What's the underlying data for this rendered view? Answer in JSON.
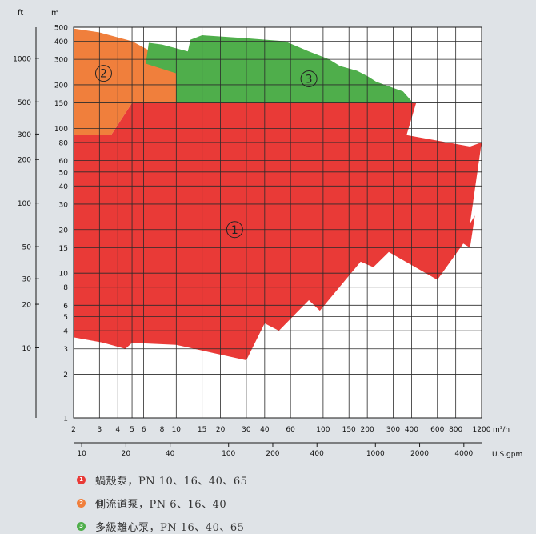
{
  "chart_data": {
    "type": "area",
    "x_axis": {
      "label": "m³/h",
      "scale": "log",
      "range": [
        2,
        1200
      ],
      "ticks": [
        "2",
        "3",
        "4",
        "5",
        "6",
        "8",
        "10",
        "15",
        "20",
        "30",
        "40",
        "60",
        "100",
        "150",
        "200",
        "300",
        "400",
        "600",
        "800",
        "1200"
      ],
      "secondary_label": "U.S.gpm",
      "secondary_ticks": [
        "10",
        "20",
        "40",
        "100",
        "200",
        "400",
        "1000",
        "2000",
        "4000"
      ]
    },
    "y_axis": {
      "label": "m",
      "scale": "log",
      "range": [
        1,
        500
      ],
      "ticks": [
        "1",
        "2",
        "3",
        "4",
        "5",
        "6",
        "8",
        "10",
        "15",
        "20",
        "30",
        "40",
        "50",
        "60",
        "80",
        "100",
        "150",
        "200",
        "300",
        "400",
        "500"
      ],
      "secondary_label": "ft",
      "secondary_ticks": [
        "10",
        "20",
        "30",
        "50",
        "100",
        "200",
        "300",
        "500",
        "1000"
      ]
    },
    "grid": true,
    "series": [
      {
        "region_label": "1",
        "color": "#e93a37",
        "polygon": [
          [
            2,
            3.6
          ],
          [
            3.2,
            3.3
          ],
          [
            4.5,
            3.0
          ],
          [
            5,
            3.3
          ],
          [
            10,
            3.2
          ],
          [
            18,
            2.8
          ],
          [
            30,
            2.5
          ],
          [
            40,
            4.5
          ],
          [
            50,
            4.0
          ],
          [
            80,
            6.5
          ],
          [
            95,
            5.5
          ],
          [
            180,
            12.0
          ],
          [
            220,
            11.0
          ],
          [
            280,
            14.0
          ],
          [
            600,
            9.0
          ],
          [
            900,
            16.0
          ],
          [
            1000,
            15.0
          ],
          [
            1080,
            25.0
          ],
          [
            1000,
            22.0
          ],
          [
            1200,
            80.0
          ],
          [
            1000,
            75.0
          ],
          [
            370,
            90.0
          ],
          [
            430,
            150.0
          ],
          [
            5.0,
            150.0
          ],
          [
            3.6,
            90.0
          ],
          [
            2,
            90.0
          ]
        ]
      },
      {
        "region_label": "2",
        "color": "#f07f3c",
        "polygon": [
          [
            2,
            90.0
          ],
          [
            3.6,
            90.0
          ],
          [
            5.0,
            150.0
          ],
          [
            10,
            150.0
          ],
          [
            10,
            240.0
          ],
          [
            7.5,
            320.0
          ],
          [
            5,
            400.0
          ],
          [
            3,
            460.0
          ],
          [
            2,
            490.0
          ]
        ]
      },
      {
        "region_label": "3",
        "color": "#4fae4b",
        "polygon": [
          [
            10,
            150.0
          ],
          [
            410,
            150.0
          ],
          [
            350,
            180.0
          ],
          [
            230,
            210.0
          ],
          [
            200,
            230.0
          ],
          [
            170,
            250.0
          ],
          [
            130,
            270.0
          ],
          [
            110,
            300.0
          ],
          [
            80,
            340.0
          ],
          [
            55,
            400.0
          ],
          [
            30,
            420.0
          ],
          [
            15,
            440.0
          ],
          [
            12.5,
            410.0
          ],
          [
            12,
            340.0
          ],
          [
            8,
            380.0
          ],
          [
            6.5,
            390.0
          ],
          [
            6.2,
            280.0
          ],
          [
            10,
            240.0
          ]
        ]
      }
    ]
  },
  "legend": [
    {
      "badge": "1",
      "color": "#e93a37",
      "text": "蝸殼泵，PN 10、16、40、65"
    },
    {
      "badge": "2",
      "color": "#f07f3c",
      "text": "側流道泵，PN 6、16、40"
    },
    {
      "badge": "3",
      "color": "#4fae4b",
      "text": "多級離心泵，PN 16、40、65"
    }
  ]
}
